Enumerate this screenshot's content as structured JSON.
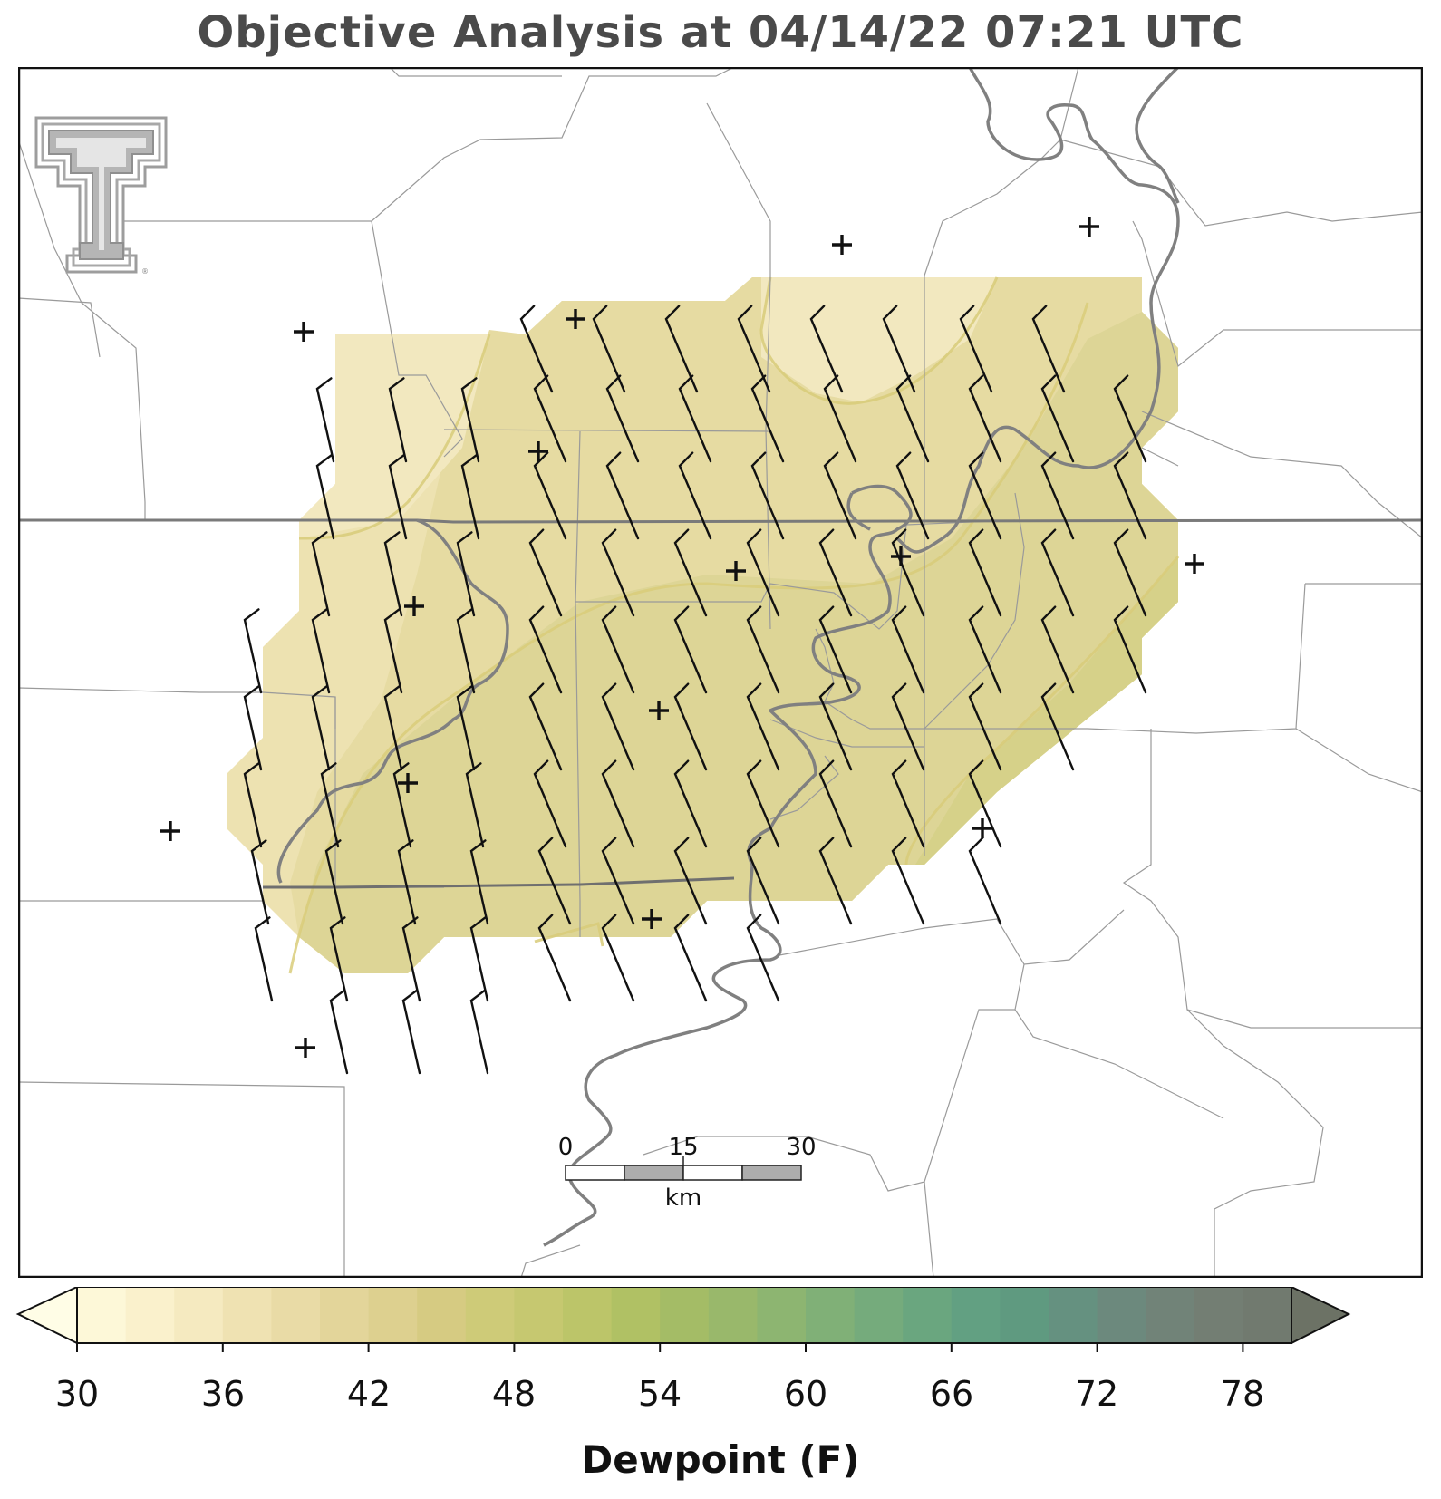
{
  "title": "Objective Analysis at 04/14/22 07:21 UTC",
  "colorbar": {
    "label": "Dewpoint (F)",
    "ticks": [
      "30",
      "36",
      "42",
      "48",
      "54",
      "60",
      "66",
      "72",
      "78"
    ],
    "min": 30,
    "max": 80,
    "step": 2,
    "low_color": "#fffde6",
    "high_color": "#6c7265",
    "colors": [
      "#fdf8d8",
      "#faf1cc",
      "#f5eac0",
      "#efe2b2",
      "#e9dba6",
      "#e3d59a",
      "#ddd08f",
      "#d6cb82",
      "#cecb78",
      "#c6c870",
      "#bcc569",
      "#b0c164",
      "#a4bc66",
      "#99b86b",
      "#8db571",
      "#80b077",
      "#75ab7c",
      "#6aa67f",
      "#62a082",
      "#5f9a80",
      "#659180",
      "#6c897d",
      "#718378",
      "#737e73",
      "#717a6f"
    ]
  },
  "scale_bar": {
    "ticks": [
      "0",
      "15",
      "30"
    ],
    "unit": "km"
  },
  "logo": "texas-tech-double-t-logo",
  "field_levels": [
    "36",
    "38",
    "40",
    "42",
    "44"
  ],
  "station_plus_count": 17,
  "wind_barb_note": "10 kt northwest winds across analysis grid"
}
